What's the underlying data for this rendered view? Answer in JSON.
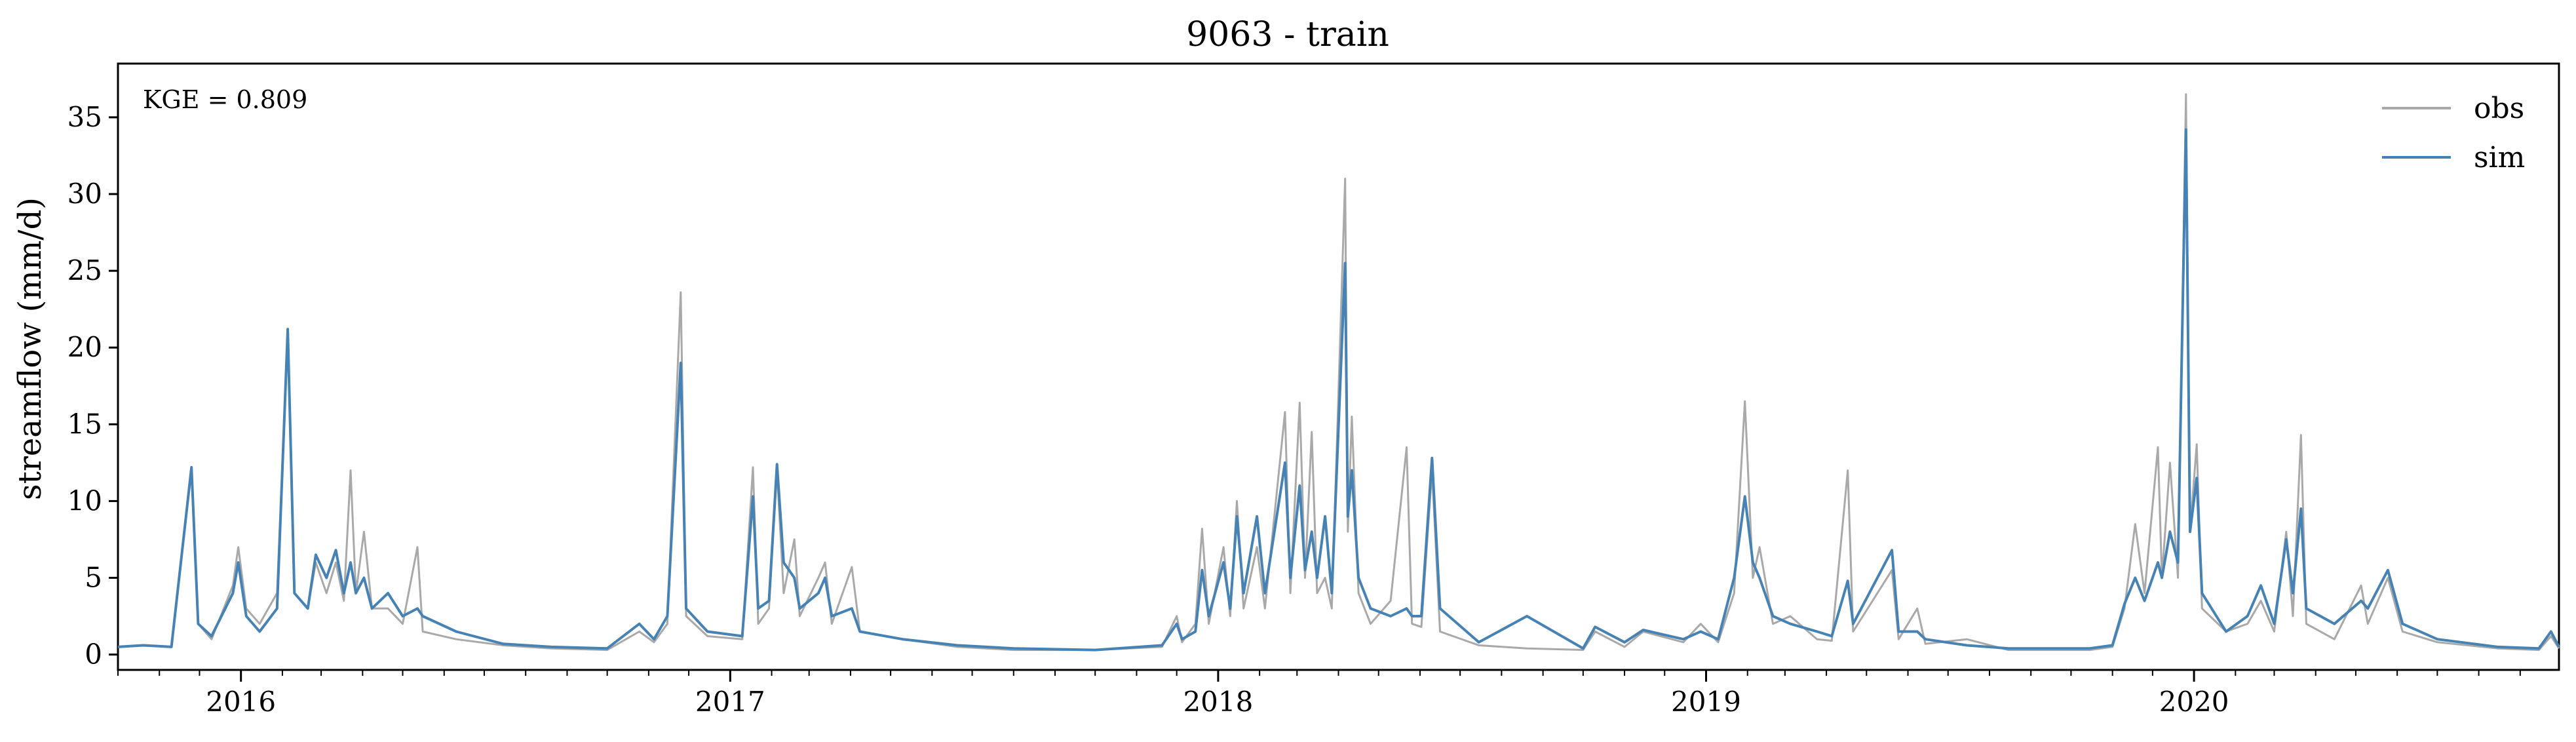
{
  "chart_data": {
    "type": "line",
    "title": "9063 - train",
    "xlabel": "",
    "ylabel": "streamflow (mm/d)",
    "annotation": "KGE = 0.809",
    "xlim": [
      "2015-10-01",
      "2020-09-30"
    ],
    "ylim": [
      -1,
      38.5
    ],
    "x_ticks": [
      "2016",
      "2017",
      "2018",
      "2019",
      "2020"
    ],
    "y_ticks": [
      "0",
      "5",
      "10",
      "15",
      "20",
      "25",
      "30",
      "35"
    ],
    "grid": false,
    "legend_position": "top-right",
    "colors": {
      "obs": "#a9a9a9",
      "sim": "#4682b4"
    },
    "series": [
      {
        "name": "obs",
        "color": "#a9a9a9",
        "points": [
          [
            "2015-10-01",
            0.5
          ],
          [
            "2015-10-20",
            0.6
          ],
          [
            "2015-11-10",
            0.5
          ],
          [
            "2015-11-25",
            12.0
          ],
          [
            "2015-11-30",
            2.0
          ],
          [
            "2015-12-10",
            1.0
          ],
          [
            "2015-12-26",
            4.5
          ],
          [
            "2015-12-30",
            7.0
          ],
          [
            "2016-01-05",
            3.0
          ],
          [
            "2016-01-15",
            2.0
          ],
          [
            "2016-01-28",
            4.0
          ],
          [
            "2016-02-05",
            21.0
          ],
          [
            "2016-02-10",
            4.0
          ],
          [
            "2016-02-20",
            3.0
          ],
          [
            "2016-02-26",
            6.0
          ],
          [
            "2016-03-05",
            4.0
          ],
          [
            "2016-03-12",
            6.0
          ],
          [
            "2016-03-18",
            3.5
          ],
          [
            "2016-03-23",
            12.0
          ],
          [
            "2016-03-27",
            4.0
          ],
          [
            "2016-04-02",
            8.0
          ],
          [
            "2016-04-08",
            3.0
          ],
          [
            "2016-04-20",
            3.0
          ],
          [
            "2016-05-01",
            2.0
          ],
          [
            "2016-05-12",
            7.0
          ],
          [
            "2016-05-16",
            1.5
          ],
          [
            "2016-06-10",
            1.0
          ],
          [
            "2016-07-15",
            0.6
          ],
          [
            "2016-08-20",
            0.4
          ],
          [
            "2016-10-01",
            0.3
          ],
          [
            "2016-10-25",
            1.5
          ],
          [
            "2016-11-05",
            0.8
          ],
          [
            "2016-11-15",
            2.0
          ],
          [
            "2016-11-25",
            23.6
          ],
          [
            "2016-11-29",
            2.5
          ],
          [
            "2016-12-15",
            1.2
          ],
          [
            "2017-01-10",
            1.0
          ],
          [
            "2017-01-18",
            12.2
          ],
          [
            "2017-01-22",
            2.0
          ],
          [
            "2017-01-30",
            3.0
          ],
          [
            "2017-02-05",
            12.0
          ],
          [
            "2017-02-10",
            4.0
          ],
          [
            "2017-02-18",
            7.5
          ],
          [
            "2017-02-22",
            2.5
          ],
          [
            "2017-03-08",
            5.0
          ],
          [
            "2017-03-13",
            6.0
          ],
          [
            "2017-03-18",
            2.0
          ],
          [
            "2017-04-02",
            5.7
          ],
          [
            "2017-04-08",
            1.5
          ],
          [
            "2017-05-10",
            1.0
          ],
          [
            "2017-06-20",
            0.5
          ],
          [
            "2017-08-01",
            0.3
          ],
          [
            "2017-10-01",
            0.3
          ],
          [
            "2017-11-20",
            0.5
          ],
          [
            "2017-12-01",
            2.5
          ],
          [
            "2017-12-05",
            0.8
          ],
          [
            "2017-12-15",
            2.0
          ],
          [
            "2017-12-20",
            8.2
          ],
          [
            "2017-12-25",
            2.0
          ],
          [
            "2018-01-05",
            7.0
          ],
          [
            "2018-01-10",
            2.5
          ],
          [
            "2018-01-15",
            10.0
          ],
          [
            "2018-01-20",
            3.0
          ],
          [
            "2018-01-30",
            7.0
          ],
          [
            "2018-02-05",
            3.0
          ],
          [
            "2018-02-20",
            15.8
          ],
          [
            "2018-02-24",
            4.0
          ],
          [
            "2018-03-03",
            16.4
          ],
          [
            "2018-03-07",
            5.0
          ],
          [
            "2018-03-12",
            14.5
          ],
          [
            "2018-03-16",
            4.0
          ],
          [
            "2018-03-22",
            5.0
          ],
          [
            "2018-03-27",
            3.0
          ],
          [
            "2018-04-06",
            31.0
          ],
          [
            "2018-04-08",
            8.0
          ],
          [
            "2018-04-11",
            15.5
          ],
          [
            "2018-04-16",
            4.0
          ],
          [
            "2018-04-25",
            2.0
          ],
          [
            "2018-05-10",
            3.5
          ],
          [
            "2018-05-22",
            13.5
          ],
          [
            "2018-05-26",
            2.0
          ],
          [
            "2018-06-02",
            1.8
          ],
          [
            "2018-06-10",
            12.0
          ],
          [
            "2018-06-16",
            1.5
          ],
          [
            "2018-07-15",
            0.6
          ],
          [
            "2018-08-20",
            0.4
          ],
          [
            "2018-10-01",
            0.3
          ],
          [
            "2018-10-10",
            1.5
          ],
          [
            "2018-11-01",
            0.5
          ],
          [
            "2018-11-15",
            1.5
          ],
          [
            "2018-12-15",
            0.8
          ],
          [
            "2018-12-28",
            2.0
          ],
          [
            "2019-01-10",
            0.8
          ],
          [
            "2019-01-22",
            4.0
          ],
          [
            "2019-01-30",
            16.5
          ],
          [
            "2019-02-05",
            5.0
          ],
          [
            "2019-02-10",
            7.0
          ],
          [
            "2019-02-20",
            2.0
          ],
          [
            "2019-03-05",
            2.5
          ],
          [
            "2019-03-25",
            1.0
          ],
          [
            "2019-04-05",
            0.9
          ],
          [
            "2019-04-17",
            12.0
          ],
          [
            "2019-04-21",
            1.5
          ],
          [
            "2019-05-20",
            5.5
          ],
          [
            "2019-05-25",
            1.0
          ],
          [
            "2019-06-08",
            3.0
          ],
          [
            "2019-06-14",
            0.7
          ],
          [
            "2019-07-15",
            1.0
          ],
          [
            "2019-08-15",
            0.3
          ],
          [
            "2019-10-15",
            0.3
          ],
          [
            "2019-11-01",
            0.5
          ],
          [
            "2019-11-10",
            3.0
          ],
          [
            "2019-11-18",
            8.5
          ],
          [
            "2019-11-25",
            4.0
          ],
          [
            "2019-12-05",
            13.5
          ],
          [
            "2019-12-08",
            5.0
          ],
          [
            "2019-12-14",
            12.5
          ],
          [
            "2019-12-20",
            5.0
          ],
          [
            "2019-12-26",
            36.5
          ],
          [
            "2019-12-29",
            8.0
          ],
          [
            "2020-01-03",
            13.7
          ],
          [
            "2020-01-07",
            3.0
          ],
          [
            "2020-01-25",
            1.5
          ],
          [
            "2020-02-10",
            2.0
          ],
          [
            "2020-02-20",
            3.5
          ],
          [
            "2020-03-01",
            1.5
          ],
          [
            "2020-03-10",
            8.0
          ],
          [
            "2020-03-15",
            2.5
          ],
          [
            "2020-03-21",
            14.3
          ],
          [
            "2020-03-25",
            2.0
          ],
          [
            "2020-04-15",
            1.0
          ],
          [
            "2020-05-05",
            4.5
          ],
          [
            "2020-05-10",
            2.0
          ],
          [
            "2020-05-25",
            5.0
          ],
          [
            "2020-06-05",
            1.5
          ],
          [
            "2020-07-01",
            0.8
          ],
          [
            "2020-08-15",
            0.4
          ],
          [
            "2020-09-15",
            0.3
          ],
          [
            "2020-09-24",
            1.2
          ],
          [
            "2020-09-30",
            0.4
          ]
        ]
      },
      {
        "name": "sim",
        "color": "#4682b4",
        "points": [
          [
            "2015-10-01",
            0.5
          ],
          [
            "2015-10-20",
            0.6
          ],
          [
            "2015-11-10",
            0.5
          ],
          [
            "2015-11-25",
            12.2
          ],
          [
            "2015-11-30",
            2.0
          ],
          [
            "2015-12-10",
            1.2
          ],
          [
            "2015-12-26",
            4.0
          ],
          [
            "2015-12-30",
            6.0
          ],
          [
            "2016-01-05",
            2.5
          ],
          [
            "2016-01-15",
            1.5
          ],
          [
            "2016-01-28",
            3.0
          ],
          [
            "2016-02-05",
            21.2
          ],
          [
            "2016-02-10",
            4.0
          ],
          [
            "2016-02-20",
            3.0
          ],
          [
            "2016-02-26",
            6.5
          ],
          [
            "2016-03-05",
            5.0
          ],
          [
            "2016-03-12",
            6.8
          ],
          [
            "2016-03-18",
            4.0
          ],
          [
            "2016-03-23",
            6.0
          ],
          [
            "2016-03-27",
            4.0
          ],
          [
            "2016-04-02",
            5.0
          ],
          [
            "2016-04-08",
            3.0
          ],
          [
            "2016-04-20",
            4.0
          ],
          [
            "2016-05-01",
            2.5
          ],
          [
            "2016-05-12",
            3.0
          ],
          [
            "2016-05-16",
            2.5
          ],
          [
            "2016-06-10",
            1.5
          ],
          [
            "2016-07-15",
            0.7
          ],
          [
            "2016-08-20",
            0.5
          ],
          [
            "2016-10-01",
            0.4
          ],
          [
            "2016-10-25",
            2.0
          ],
          [
            "2016-11-05",
            1.0
          ],
          [
            "2016-11-15",
            2.5
          ],
          [
            "2016-11-25",
            19.0
          ],
          [
            "2016-11-29",
            3.0
          ],
          [
            "2016-12-15",
            1.5
          ],
          [
            "2017-01-10",
            1.2
          ],
          [
            "2017-01-18",
            10.3
          ],
          [
            "2017-01-22",
            3.0
          ],
          [
            "2017-01-30",
            3.5
          ],
          [
            "2017-02-05",
            12.4
          ],
          [
            "2017-02-10",
            6.0
          ],
          [
            "2017-02-18",
            5.0
          ],
          [
            "2017-02-22",
            3.0
          ],
          [
            "2017-03-08",
            4.0
          ],
          [
            "2017-03-13",
            5.0
          ],
          [
            "2017-03-18",
            2.5
          ],
          [
            "2017-04-02",
            3.0
          ],
          [
            "2017-04-08",
            1.5
          ],
          [
            "2017-05-10",
            1.0
          ],
          [
            "2017-06-20",
            0.6
          ],
          [
            "2017-08-01",
            0.4
          ],
          [
            "2017-10-01",
            0.3
          ],
          [
            "2017-11-20",
            0.6
          ],
          [
            "2017-12-01",
            2.0
          ],
          [
            "2017-12-05",
            1.0
          ],
          [
            "2017-12-15",
            1.5
          ],
          [
            "2017-12-20",
            5.5
          ],
          [
            "2017-12-25",
            2.5
          ],
          [
            "2018-01-05",
            6.0
          ],
          [
            "2018-01-10",
            3.0
          ],
          [
            "2018-01-15",
            9.0
          ],
          [
            "2018-01-20",
            4.0
          ],
          [
            "2018-01-30",
            9.0
          ],
          [
            "2018-02-05",
            4.0
          ],
          [
            "2018-02-20",
            12.5
          ],
          [
            "2018-02-24",
            5.0
          ],
          [
            "2018-03-03",
            11.0
          ],
          [
            "2018-03-07",
            5.5
          ],
          [
            "2018-03-12",
            8.0
          ],
          [
            "2018-03-16",
            5.0
          ],
          [
            "2018-03-22",
            9.0
          ],
          [
            "2018-03-27",
            4.0
          ],
          [
            "2018-04-06",
            25.5
          ],
          [
            "2018-04-08",
            9.0
          ],
          [
            "2018-04-11",
            12.0
          ],
          [
            "2018-04-16",
            5.0
          ],
          [
            "2018-04-25",
            3.0
          ],
          [
            "2018-05-10",
            2.5
          ],
          [
            "2018-05-22",
            3.0
          ],
          [
            "2018-05-26",
            2.5
          ],
          [
            "2018-06-02",
            2.5
          ],
          [
            "2018-06-10",
            12.8
          ],
          [
            "2018-06-16",
            3.0
          ],
          [
            "2018-07-15",
            0.8
          ],
          [
            "2018-08-20",
            2.5
          ],
          [
            "2018-10-01",
            0.4
          ],
          [
            "2018-10-10",
            1.8
          ],
          [
            "2018-11-01",
            0.8
          ],
          [
            "2018-11-15",
            1.6
          ],
          [
            "2018-12-15",
            1.0
          ],
          [
            "2018-12-28",
            1.5
          ],
          [
            "2019-01-10",
            1.0
          ],
          [
            "2019-01-22",
            5.0
          ],
          [
            "2019-01-30",
            10.3
          ],
          [
            "2019-02-05",
            6.0
          ],
          [
            "2019-02-10",
            5.0
          ],
          [
            "2019-02-20",
            2.5
          ],
          [
            "2019-03-05",
            2.0
          ],
          [
            "2019-03-25",
            1.5
          ],
          [
            "2019-04-05",
            1.2
          ],
          [
            "2019-04-17",
            4.8
          ],
          [
            "2019-04-21",
            2.0
          ],
          [
            "2019-05-20",
            6.8
          ],
          [
            "2019-05-25",
            1.5
          ],
          [
            "2019-06-08",
            1.5
          ],
          [
            "2019-06-14",
            1.0
          ],
          [
            "2019-07-15",
            0.6
          ],
          [
            "2019-08-15",
            0.4
          ],
          [
            "2019-10-15",
            0.4
          ],
          [
            "2019-11-01",
            0.6
          ],
          [
            "2019-11-10",
            3.3
          ],
          [
            "2019-11-18",
            5.0
          ],
          [
            "2019-11-25",
            3.5
          ],
          [
            "2019-12-05",
            6.0
          ],
          [
            "2019-12-08",
            5.0
          ],
          [
            "2019-12-14",
            8.0
          ],
          [
            "2019-12-20",
            6.0
          ],
          [
            "2019-12-26",
            34.2
          ],
          [
            "2019-12-29",
            8.0
          ],
          [
            "2020-01-03",
            11.5
          ],
          [
            "2020-01-07",
            4.0
          ],
          [
            "2020-01-25",
            1.5
          ],
          [
            "2020-02-10",
            2.5
          ],
          [
            "2020-02-20",
            4.5
          ],
          [
            "2020-03-01",
            2.0
          ],
          [
            "2020-03-10",
            7.5
          ],
          [
            "2020-03-15",
            4.0
          ],
          [
            "2020-03-21",
            9.5
          ],
          [
            "2020-03-25",
            3.0
          ],
          [
            "2020-04-15",
            2.0
          ],
          [
            "2020-05-05",
            3.5
          ],
          [
            "2020-05-10",
            3.0
          ],
          [
            "2020-05-25",
            5.5
          ],
          [
            "2020-06-05",
            2.0
          ],
          [
            "2020-07-01",
            1.0
          ],
          [
            "2020-08-15",
            0.5
          ],
          [
            "2020-09-15",
            0.4
          ],
          [
            "2020-09-24",
            1.5
          ],
          [
            "2020-09-30",
            0.5
          ]
        ]
      }
    ]
  }
}
